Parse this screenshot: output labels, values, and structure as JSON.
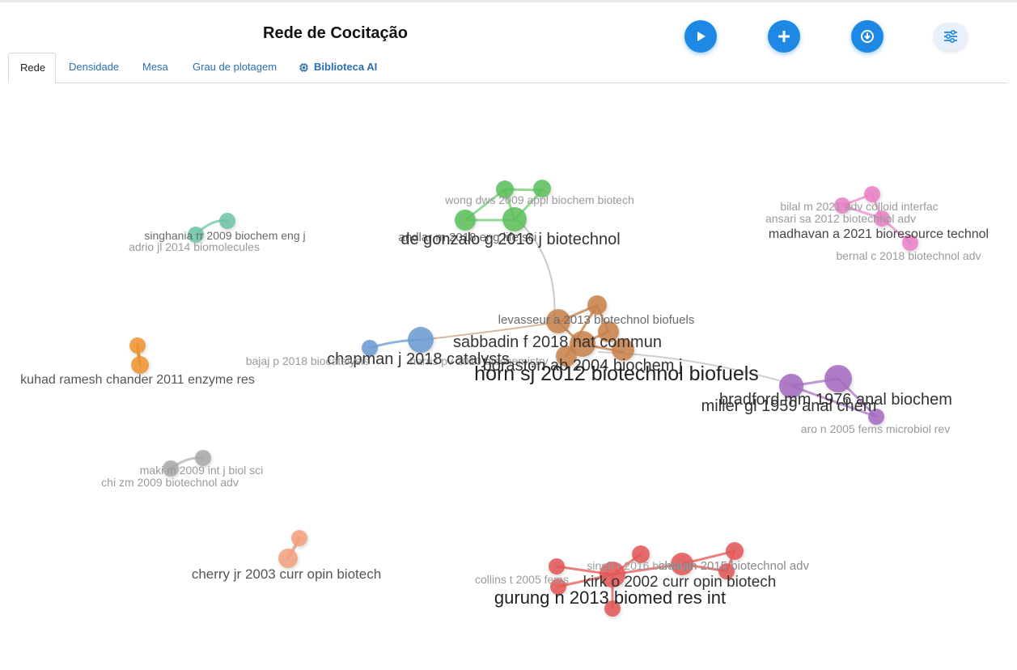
{
  "title": "Rede de Cocitação",
  "toolbar": {
    "play_icon": "play-icon",
    "add_icon": "plus-icon",
    "download_icon": "download-icon",
    "settings_icon": "sliders-icon"
  },
  "tabs": [
    {
      "label": "Rede",
      "active": true
    },
    {
      "label": "Densidade",
      "active": false
    },
    {
      "label": "Mesa",
      "active": false
    },
    {
      "label": "Grau de plotagem",
      "active": false
    },
    {
      "label": "Biblioteca AI",
      "active": false,
      "icon": "chip-icon"
    }
  ],
  "colors": {
    "accent": "#1e88e5",
    "tab_link": "#2a6fb0",
    "green": "#5cbf5c",
    "brown": "#c8814a",
    "blue": "#6b9bd2",
    "purple": "#a56ac0",
    "pink": "#ea7fc6",
    "teal": "#6cc3a8",
    "orange": "#ee9430",
    "gray": "#a8a8a8",
    "salmon": "#f2a07e",
    "red": "#e35656"
  },
  "network": {
    "labels": [
      {
        "text": "wong dws 2009 appl biochem biotech",
        "cluster": "green",
        "size": "small"
      },
      {
        "text": "andlar m 2018 eng life sci",
        "cluster": "green",
        "size": "small"
      },
      {
        "text": "de gonzalo g 2016 j biotechnol",
        "cluster": "green",
        "size": "medium"
      },
      {
        "text": "levasseur a 2013 biotechnol biofuels",
        "cluster": "brown",
        "size": "small"
      },
      {
        "text": "sabbadin f 2018 nat commun",
        "cluster": "brown",
        "size": "medium"
      },
      {
        "text": "horn sj 2012 biotechnol biofuels",
        "cluster": "brown",
        "size": "large"
      },
      {
        "text": "harris pv 2010 biochemistry",
        "cluster": "brown",
        "size": "small"
      },
      {
        "text": "boraston ab 2004 biochem j",
        "cluster": "brown",
        "size": "medium"
      },
      {
        "text": "chapman j 2018 catalysts",
        "cluster": "blue",
        "size": "medium"
      },
      {
        "text": "bajaj p 2018 biocatalysis",
        "cluster": "blue",
        "size": "small"
      },
      {
        "text": "bilal m 2021 adv colloid interfac",
        "cluster": "pink",
        "size": "small"
      },
      {
        "text": "ansari sa 2012 biotechnol adv",
        "cluster": "pink",
        "size": "small"
      },
      {
        "text": "madhavan a 2021 bioresource technol",
        "cluster": "pink",
        "size": "medium"
      },
      {
        "text": "bernal c 2018 biotechnol adv",
        "cluster": "pink",
        "size": "small"
      },
      {
        "text": "singhania rr 2009 biochem eng j",
        "cluster": "teal",
        "size": "small"
      },
      {
        "text": "adrio jl 2014 biomolecules",
        "cluster": "teal",
        "size": "small"
      },
      {
        "text": "kuhad ramesh chander 2011 enzyme res",
        "cluster": "orange",
        "size": "medium"
      },
      {
        "text": "bradford mm 1976 anal biochem",
        "cluster": "purple",
        "size": "medium"
      },
      {
        "text": "miller gl 1959 anal chem",
        "cluster": "purple",
        "size": "medium"
      },
      {
        "text": "aro n 2005 fems microbiol rev",
        "cluster": "purple",
        "size": "small"
      },
      {
        "text": "maki m 2009 int j biol sci",
        "cluster": "gray",
        "size": "small"
      },
      {
        "text": "chi zm 2009 biotechnol adv",
        "cluster": "gray",
        "size": "small"
      },
      {
        "text": "cherry jr 2003 curr opin biotech",
        "cluster": "salmon",
        "size": "medium"
      },
      {
        "text": "singh r 2016 biocatal",
        "cluster": "red",
        "size": "small"
      },
      {
        "text": "choi jm 2015 biotechnol adv",
        "cluster": "red",
        "size": "small"
      },
      {
        "text": "kirk o 2002 curr opin biotech",
        "cluster": "red",
        "size": "medium"
      },
      {
        "text": "collins t 2005 fems",
        "cluster": "red",
        "size": "small"
      },
      {
        "text": "gurung n 2013 biomed res int",
        "cluster": "red",
        "size": "large"
      }
    ]
  }
}
